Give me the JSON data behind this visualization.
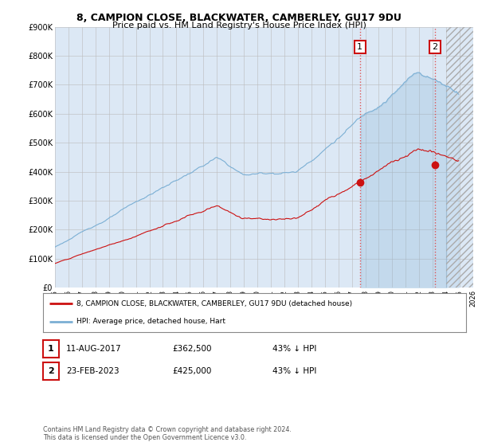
{
  "title": "8, CAMPION CLOSE, BLACKWATER, CAMBERLEY, GU17 9DU",
  "subtitle": "Price paid vs. HM Land Registry's House Price Index (HPI)",
  "ylim": [
    0,
    900000
  ],
  "yticks": [
    0,
    100000,
    200000,
    300000,
    400000,
    500000,
    600000,
    700000,
    800000,
    900000
  ],
  "ytick_labels": [
    "£0",
    "£100K",
    "£200K",
    "£300K",
    "£400K",
    "£500K",
    "£600K",
    "£700K",
    "£800K",
    "£900K"
  ],
  "bg_color": "#dce8f5",
  "hpi_color": "#7bafd4",
  "price_color": "#cc1111",
  "grid_color": "#bbbbbb",
  "legend_entry1": "8, CAMPION CLOSE, BLACKWATER, CAMBERLEY, GU17 9DU (detached house)",
  "legend_entry2": "HPI: Average price, detached house, Hart",
  "table_row1": [
    "1",
    "11-AUG-2017",
    "£362,500",
    "43% ↓ HPI"
  ],
  "table_row2": [
    "2",
    "23-FEB-2023",
    "£425,000",
    "43% ↓ HPI"
  ],
  "footnote": "Contains HM Land Registry data © Crown copyright and database right 2024.\nThis data is licensed under the Open Government Licence v3.0.",
  "transaction1_year": 2017.6,
  "transaction1_price": 362500,
  "transaction2_year": 2023.15,
  "transaction2_price": 425000,
  "xmin": 1995,
  "xmax": 2026,
  "hatch_start": 2024.0
}
